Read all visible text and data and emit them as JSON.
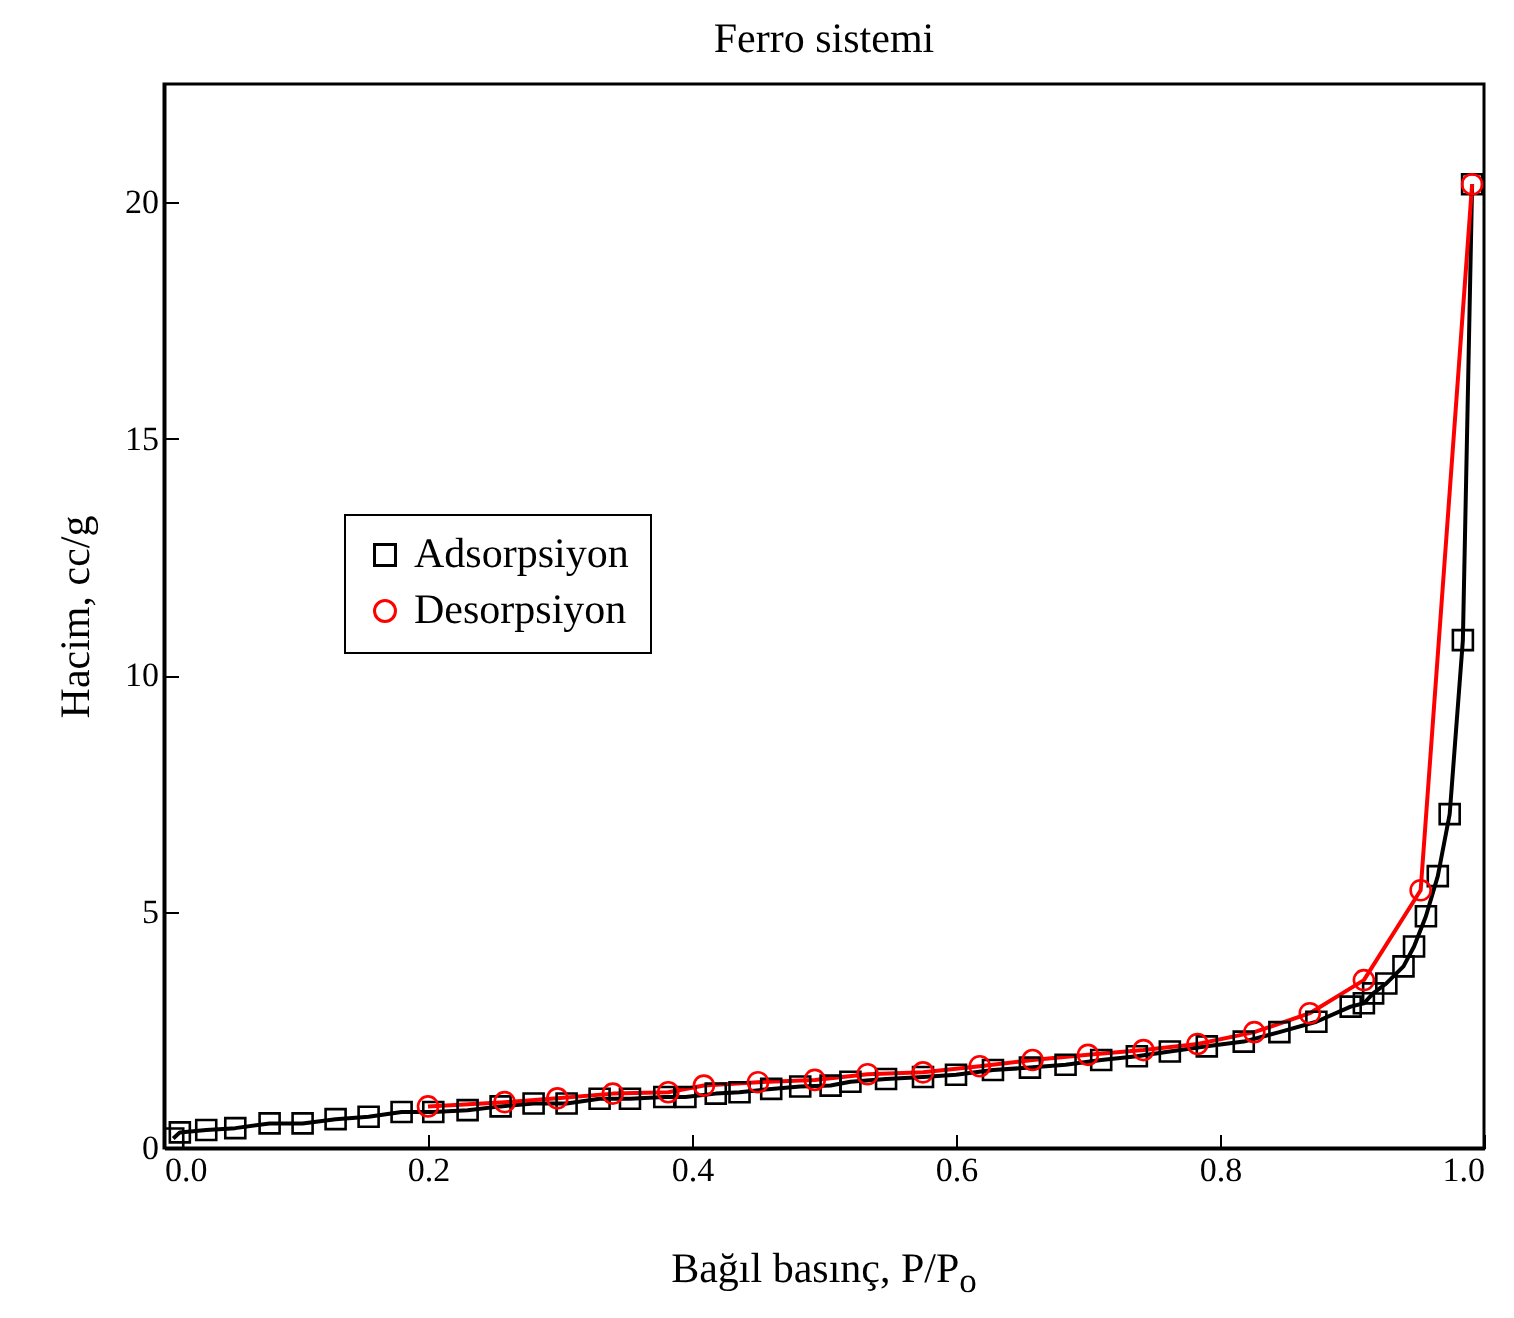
{
  "chart_data": {
    "type": "line",
    "title": "Ferro sistemi",
    "xlabel": "Bağıl basınç, P/P$_{o}$",
    "ylabel": "Hacim, cc/g",
    "xlim": [
      0,
      1
    ],
    "ylim": [
      0,
      22.5
    ],
    "xticks": [
      {
        "value": 0,
        "label": "0.0"
      },
      0.2,
      0.4,
      0.6,
      0.8,
      {
        "value": 1,
        "label": "1.0"
      }
    ],
    "yticks": [
      0,
      5,
      10,
      15,
      20
    ],
    "legend": "left",
    "line_style": "solid",
    "series": [
      {
        "name": "Adsorpsiyon",
        "color": "#000000",
        "marker": "square",
        "x": [
          0.007,
          0.012,
          0.032,
          0.054,
          0.08,
          0.105,
          0.13,
          0.155,
          0.18,
          0.204,
          0.23,
          0.255,
          0.28,
          0.305,
          0.33,
          0.353,
          0.379,
          0.395,
          0.418,
          0.436,
          0.46,
          0.482,
          0.505,
          0.52,
          0.547,
          0.575,
          0.6,
          0.628,
          0.656,
          0.683,
          0.71,
          0.737,
          0.762,
          0.79,
          0.818,
          0.845,
          0.873,
          0.899,
          0.909,
          0.916,
          0.926,
          0.939,
          0.947,
          0.956,
          0.965,
          0.974,
          0.984,
          0.991
        ],
        "values": [
          0.2,
          0.33,
          0.38,
          0.42,
          0.52,
          0.52,
          0.61,
          0.66,
          0.76,
          0.76,
          0.8,
          0.88,
          0.94,
          0.94,
          1.04,
          1.04,
          1.08,
          1.08,
          1.15,
          1.18,
          1.25,
          1.3,
          1.32,
          1.4,
          1.46,
          1.5,
          1.55,
          1.65,
          1.7,
          1.76,
          1.86,
          1.94,
          2.04,
          2.15,
          2.25,
          2.45,
          2.67,
          2.99,
          3.06,
          3.27,
          3.48,
          3.84,
          4.26,
          4.9,
          5.75,
          7.06,
          10.74,
          20.38
        ]
      },
      {
        "name": "Desorpsiyon",
        "color": "#ff0000",
        "marker": "circle",
        "x": [
          0.2,
          0.258,
          0.298,
          0.34,
          0.382,
          0.409,
          0.45,
          0.493,
          0.533,
          0.575,
          0.618,
          0.658,
          0.7,
          0.742,
          0.783,
          0.826,
          0.868,
          0.909,
          0.952,
          0.991
        ],
        "values": [
          0.88,
          0.97,
          1.05,
          1.15,
          1.18,
          1.32,
          1.39,
          1.44,
          1.56,
          1.6,
          1.73,
          1.86,
          1.97,
          2.07,
          2.2,
          2.45,
          2.85,
          3.55,
          5.45,
          20.38
        ]
      }
    ]
  }
}
